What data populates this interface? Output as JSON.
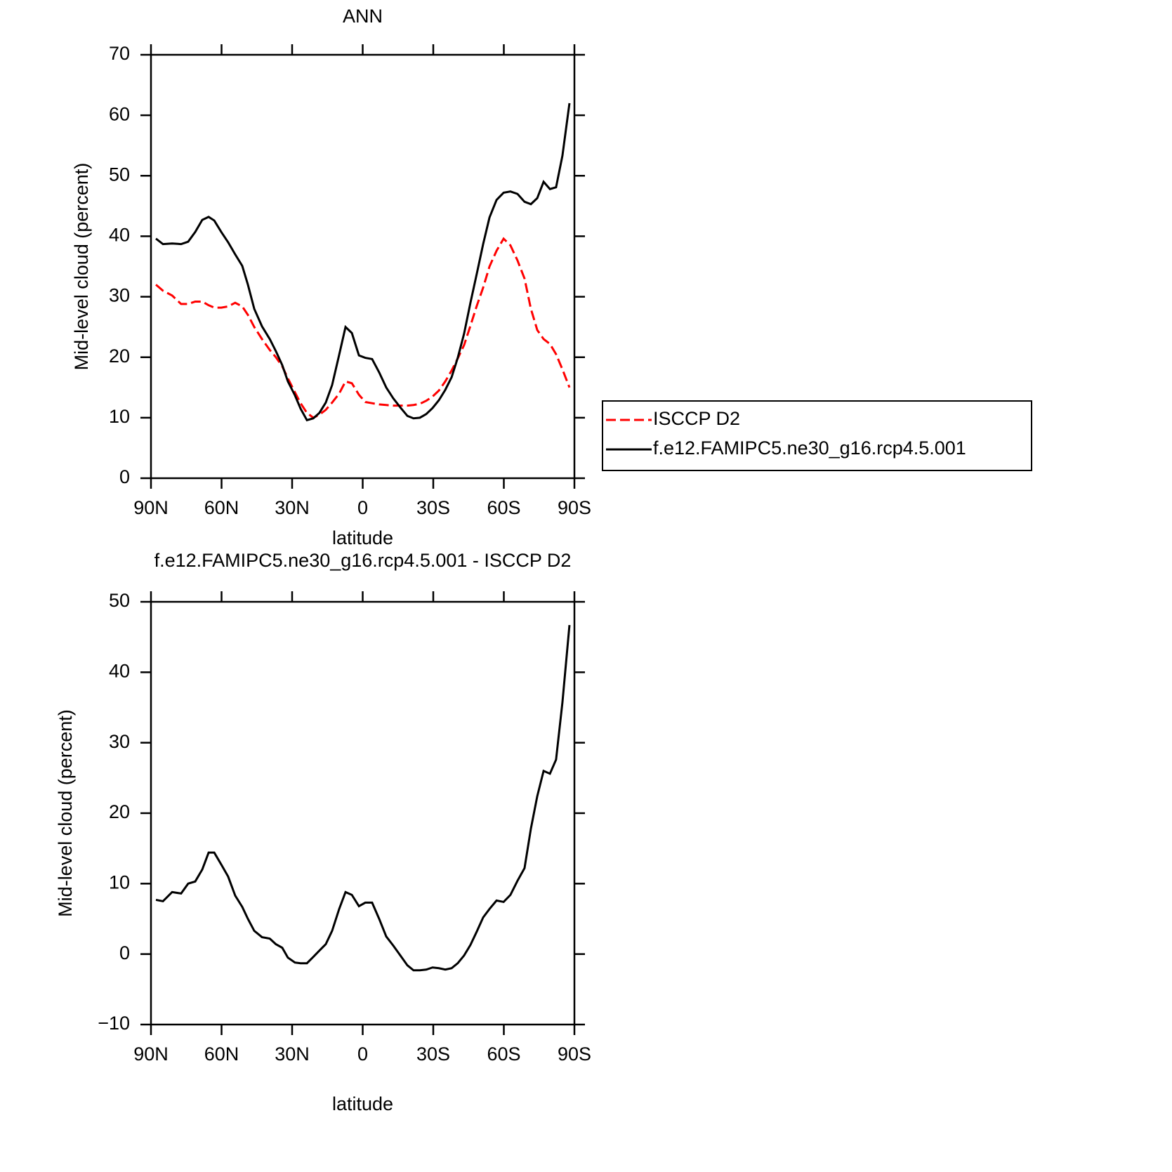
{
  "chart_data": [
    {
      "type": "line",
      "title": "ANN",
      "xlabel": "latitude",
      "ylabel": "Mid-level cloud (percent)",
      "x": [
        87.9,
        84.9,
        81,
        77.2,
        74.2,
        71.2,
        68.2,
        65.5,
        63.1,
        60.1,
        57.2,
        54.2,
        51.2,
        48.8,
        46.1,
        42.8,
        39.5,
        36.9,
        34.2,
        31.8,
        28.8,
        26.4,
        23.7,
        21.0,
        18.4,
        15.7,
        13.0,
        10.0,
        7.3,
        4.6,
        1.6,
        -1.1,
        -4.0,
        -7.0,
        -10.0,
        -13.0,
        -16.0,
        -19.0,
        -21.6,
        -24.3,
        -27.0,
        -29.7,
        -32.4,
        -35.1,
        -37.8,
        -40.4,
        -43.1,
        -45.8,
        -48.5,
        -51.2,
        -53.9,
        -56.9,
        -59.9,
        -62.8,
        -65.8,
        -68.8,
        -71.5,
        -74.2,
        -76.9,
        -79.6,
        -82.2,
        -84.9,
        -87.9
      ],
      "series": [
        {
          "name": "ISCCP D2",
          "color": "#ff0000",
          "linestyle": "dashed",
          "values": [
            32.0,
            31.0,
            30.2,
            28.8,
            28.8,
            29.2,
            29.2,
            28.6,
            28.2,
            28.2,
            28.4,
            29.0,
            28.4,
            27.0,
            25.0,
            23.0,
            21.2,
            20.0,
            18.5,
            16.5,
            14.2,
            12.4,
            10.8,
            10.0,
            10.5,
            11.3,
            12.5,
            14.0,
            16.0,
            15.7,
            13.8,
            12.6,
            12.4,
            12.2,
            12.1,
            12.0,
            12.0,
            12.0,
            12.1,
            12.3,
            12.8,
            13.5,
            14.5,
            16.0,
            17.8,
            19.8,
            22.0,
            25.2,
            28.5,
            31.5,
            35.0,
            37.6,
            39.6,
            38.5,
            36.0,
            33.0,
            28.0,
            24.5,
            23.0,
            22.2,
            20.5,
            18.0,
            15.0
          ]
        },
        {
          "name": "f.e12.FAMIPC5.ne30_g16.rcp4.5.001",
          "color": "#000000",
          "linestyle": "solid",
          "values": [
            39.6,
            38.7,
            38.8,
            38.7,
            39.1,
            40.7,
            42.7,
            43.2,
            42.6,
            40.7,
            39.0,
            37.0,
            35.1,
            32.0,
            28.0,
            25.1,
            23.0,
            21.0,
            18.7,
            16.0,
            13.7,
            11.5,
            9.6,
            9.9,
            10.8,
            12.5,
            15.4,
            20.4,
            25.0,
            24.0,
            20.3,
            19.9,
            19.7,
            17.5,
            15.0,
            13.2,
            11.7,
            10.3,
            9.9,
            10.0,
            10.6,
            11.6,
            12.9,
            14.6,
            16.7,
            19.9,
            23.9,
            29.0,
            33.8,
            38.7,
            43.1,
            46.0,
            47.2,
            47.4,
            47.0,
            45.7,
            45.3,
            46.3,
            49.0,
            47.8,
            48.1,
            53.3,
            62.0
          ]
        }
      ],
      "xlim": [
        90,
        -90
      ],
      "xticks": [
        {
          "value": 90,
          "label": "90N"
        },
        {
          "value": 60,
          "label": "60N"
        },
        {
          "value": 30,
          "label": "30N"
        },
        0,
        {
          "value": -30,
          "label": "30S"
        },
        {
          "value": -60,
          "label": "60S"
        },
        {
          "value": -90,
          "label": "90S"
        }
      ],
      "ylim": [
        0,
        70
      ],
      "yticks": [
        0,
        10,
        20,
        30,
        40,
        50,
        60,
        70
      ],
      "legend": "right"
    },
    {
      "type": "line",
      "title": "f.e12.FAMIPC5.ne30_g16.rcp4.5.001 - ISCCP D2",
      "xlabel": "latitude",
      "ylabel": "Mid-level cloud (percent)",
      "x": [
        87.9,
        84.9,
        81,
        77.2,
        74.2,
        71.2,
        68.2,
        65.5,
        63.1,
        60.1,
        57.2,
        54.2,
        51.2,
        48.8,
        46.1,
        42.8,
        39.5,
        36.9,
        34.2,
        31.8,
        28.8,
        26.4,
        23.7,
        21.0,
        18.4,
        15.7,
        13.0,
        10.0,
        7.3,
        4.6,
        1.6,
        -1.1,
        -4.0,
        -7.0,
        -10.0,
        -13.0,
        -16.0,
        -19.0,
        -21.6,
        -24.3,
        -27.0,
        -29.7,
        -32.4,
        -35.1,
        -37.8,
        -40.4,
        -43.1,
        -45.8,
        -48.5,
        -51.2,
        -53.9,
        -56.9,
        -59.9,
        -62.8,
        -65.8,
        -68.8,
        -71.5,
        -74.2,
        -76.9,
        -79.6,
        -82.2,
        -84.9,
        -87.9
      ],
      "series": [
        {
          "color": "#000000",
          "linestyle": "solid",
          "values": [
            7.7,
            7.5,
            8.8,
            8.6,
            10.0,
            10.3,
            12.0,
            14.4,
            14.4,
            12.7,
            11.0,
            8.3,
            6.7,
            5.0,
            3.3,
            2.4,
            2.2,
            1.4,
            0.9,
            -0.5,
            -1.2,
            -1.3,
            -1.3,
            -0.4,
            0.5,
            1.4,
            3.3,
            6.4,
            8.8,
            8.4,
            6.8,
            7.3,
            7.3,
            5.0,
            2.5,
            1.2,
            -0.2,
            -1.6,
            -2.3,
            -2.3,
            -2.2,
            -1.9,
            -2.0,
            -2.2,
            -2.0,
            -1.3,
            -0.2,
            1.3,
            3.2,
            5.2,
            6.4,
            7.6,
            7.4,
            8.4,
            10.4,
            12.2,
            17.8,
            22.4,
            26.0,
            25.6,
            27.6,
            35.7,
            46.7
          ]
        }
      ],
      "xlim": [
        90,
        -90
      ],
      "xticks": [
        {
          "value": 90,
          "label": "90N"
        },
        {
          "value": 60,
          "label": "60N"
        },
        {
          "value": 30,
          "label": "30N"
        },
        0,
        {
          "value": -30,
          "label": "30S"
        },
        {
          "value": -60,
          "label": "60S"
        },
        {
          "value": -90,
          "label": "90S"
        }
      ],
      "ylim": [
        -10,
        50
      ],
      "yticks": [
        {
          "value": -10,
          "label": "−10"
        },
        0,
        10,
        20,
        30,
        40,
        50
      ]
    }
  ]
}
